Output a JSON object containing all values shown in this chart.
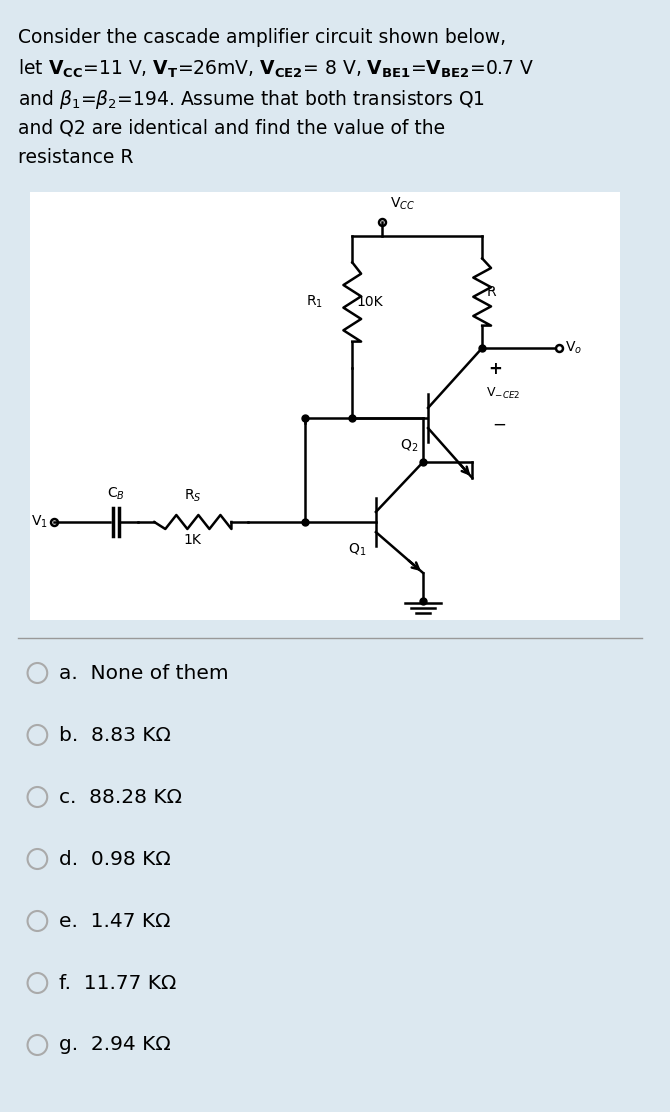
{
  "bg_color": "#dce8f0",
  "circuit_bg": "#ffffff",
  "choices": [
    "a.  None of them",
    "b.  8.83 KΩ",
    "c.  88.28 KΩ",
    "d.  0.98 KΩ",
    "e.  1.47 KΩ",
    "f.  11.77 KΩ",
    "g.  2.94 KΩ"
  ],
  "text_fontsize": 13.5,
  "choice_fontsize": 14.5
}
